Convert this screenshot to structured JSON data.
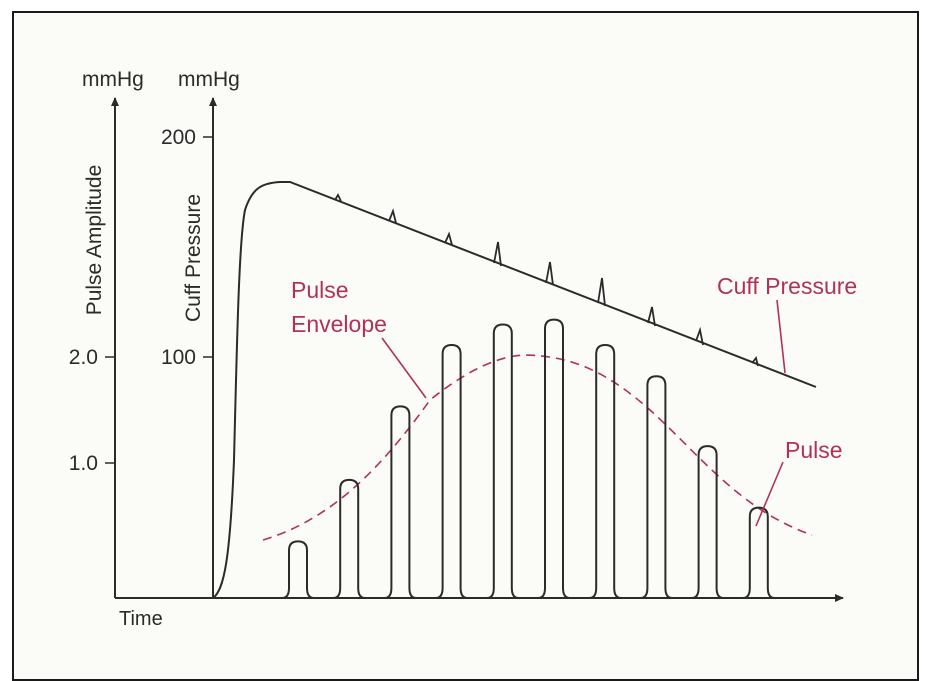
{
  "figure": {
    "left_axis": {
      "unit": "mmHg",
      "label": "Pulse Amplitude",
      "ticks": [
        {
          "value": 2.0,
          "label": "2.0"
        },
        {
          "value": 1.0,
          "label": "1.0"
        }
      ]
    },
    "right_axis": {
      "unit": "mmHg",
      "label": "Cuff Pressure",
      "ticks": [
        {
          "value": 200,
          "label": "200"
        },
        {
          "value": 100,
          "label": "100"
        }
      ]
    },
    "x_axis": {
      "label": "Time"
    },
    "annotations": {
      "cuff_pressure": "Cuff Pressure",
      "pulse_envelope_line1": "Pulse",
      "pulse_envelope_line2": "Envelope",
      "pulse": "Pulse"
    },
    "pulse_amplitudes_mmHg": [
      0.47,
      0.98,
      1.59,
      2.1,
      2.27,
      2.31,
      2.1,
      1.84,
      1.26,
      0.75
    ],
    "colors": {
      "line": "#2b2b2b",
      "annotation": "#b0325a",
      "background": "#fbfbf8",
      "border": "#1a1a1a"
    }
  }
}
